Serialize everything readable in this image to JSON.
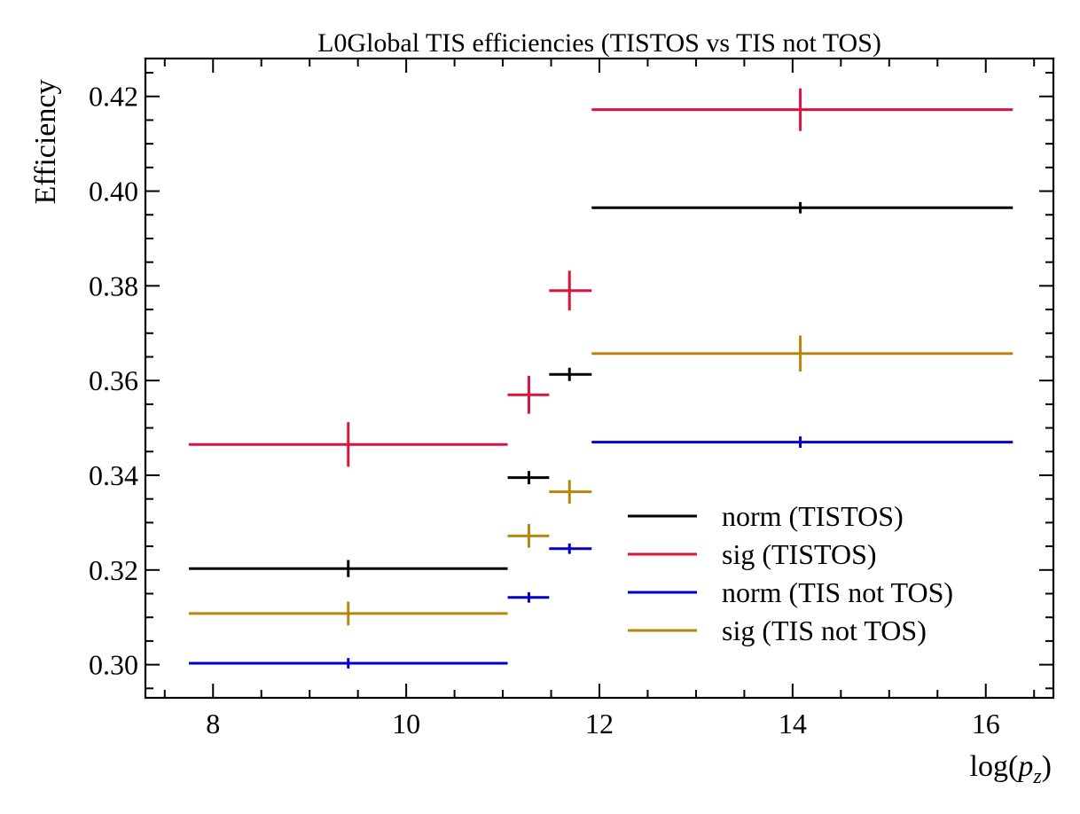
{
  "chart_data": {
    "type": "errorbar",
    "title": "L0Global TIS efficiencies (TISTOS vs TIS not TOS)",
    "xlabel_base": "log(",
    "xlabel_var": "p",
    "xlabel_sub": "z",
    "xlabel_close": ")",
    "ylabel": "Efficiency",
    "xlim": [
      7.3,
      16.7
    ],
    "ylim": [
      0.293,
      0.428
    ],
    "xticks": [
      8,
      10,
      12,
      14,
      16
    ],
    "xtick_labels": [
      "8",
      "10",
      "12",
      "14",
      "16"
    ],
    "yticks": [
      0.3,
      0.32,
      0.34,
      0.36,
      0.38,
      0.4,
      0.42
    ],
    "ytick_labels": [
      "0.30",
      "0.32",
      "0.34",
      "0.36",
      "0.38",
      "0.40",
      "0.42"
    ],
    "grid": false,
    "legend_position": "lower-right",
    "bins": [
      {
        "low": 7.75,
        "high": 11.05,
        "center": 9.4
      },
      {
        "low": 11.05,
        "high": 11.48,
        "center": 11.27
      },
      {
        "low": 11.48,
        "high": 11.92,
        "center": 11.69
      },
      {
        "low": 11.92,
        "high": 16.28,
        "center": 14.08
      }
    ],
    "series": [
      {
        "name": "norm (TISTOS)",
        "color": "#000000",
        "values": [
          0.3203,
          0.3395,
          0.3613,
          0.3965
        ],
        "errors": [
          0.0018,
          0.0014,
          0.0014,
          0.0012
        ]
      },
      {
        "name": "sig (TISTOS)",
        "color": "#dc143c",
        "values": [
          0.3465,
          0.357,
          0.379,
          0.4172
        ],
        "errors": [
          0.0047,
          0.004,
          0.0042,
          0.0045
        ]
      },
      {
        "name": "norm (TIS not TOS)",
        "color": "#0000c8",
        "values": [
          0.3003,
          0.3142,
          0.3245,
          0.347
        ],
        "errors": [
          0.0011,
          0.0011,
          0.0011,
          0.0012
        ]
      },
      {
        "name": "sig (TIS not TOS)",
        "color": "#b8860b",
        "values": [
          0.3108,
          0.3272,
          0.3365,
          0.3657
        ],
        "errors": [
          0.0025,
          0.0025,
          0.0025,
          0.0038
        ]
      }
    ]
  }
}
